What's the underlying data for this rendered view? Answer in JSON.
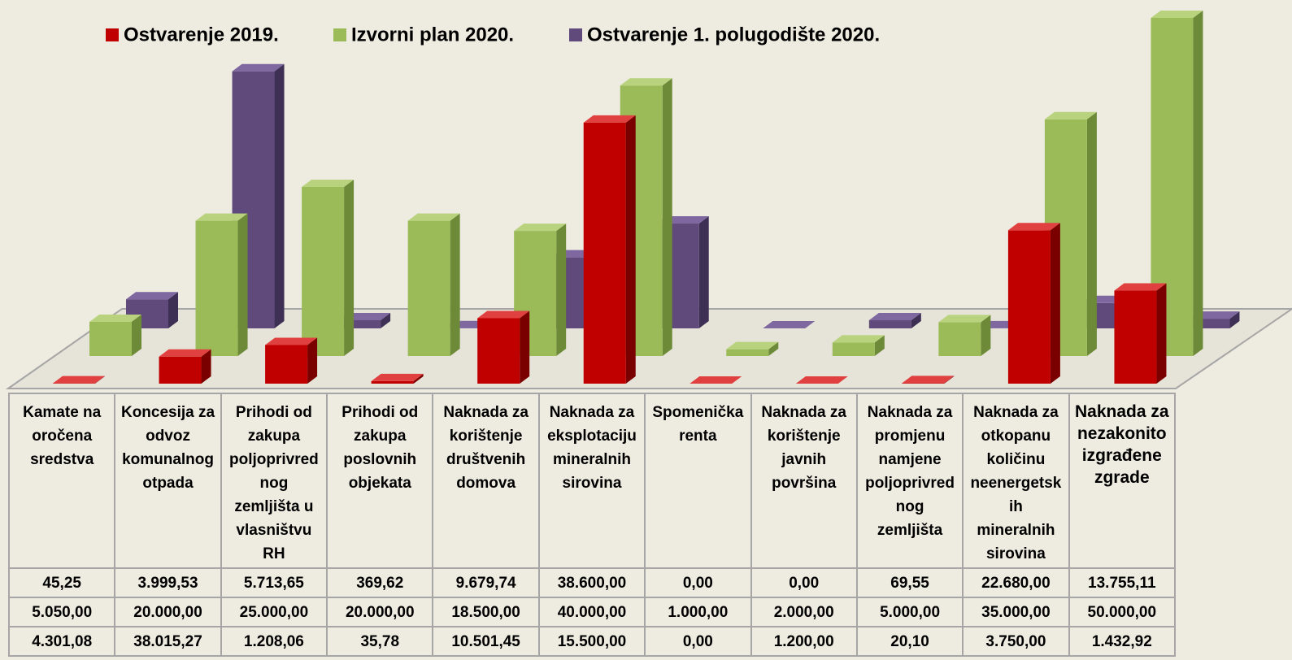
{
  "chart_data": {
    "type": "bar3d",
    "categories": [
      "Kamate na oročena sredstva",
      "Koncesija za odvoz komunalnog otpada",
      "Prihodi od zakupa poljoprivrednog zemljišta u vlasništvu RH",
      "Prihodi od zakupa poslovnih objekata",
      "Naknada za korištenje društvenih domova",
      "Naknada za eksplotaciju mineralnih sirovina",
      "Spomenička renta",
      "Naknada za korištenje javnih površina",
      "Naknada za promjenu namjene poljoprivrednog zemljišta",
      "Naknada za otkopanu količinu neenergetskih mineralnih sirovina",
      "Naknada za nezakonito izgrađene zgrade"
    ],
    "series": [
      {
        "name": "Ostvarenje 2019.",
        "color": "#c00000",
        "values": [
          45.25,
          3999.53,
          5713.65,
          369.62,
          9679.74,
          38600,
          0,
          0,
          69.55,
          22680,
          13755.11
        ],
        "value_labels": [
          "45,25",
          "3.999,53",
          "5.713,65",
          "369,62",
          "9.679,74",
          "38.600,00",
          "0,00",
          "0,00",
          "69,55",
          "22.680,00",
          "13.755,11"
        ]
      },
      {
        "name": "Izvorni plan 2020.",
        "color": "#9bbb59",
        "values": [
          5050,
          20000,
          25000,
          20000,
          18500,
          40000,
          1000,
          2000,
          5000,
          35000,
          50000
        ],
        "value_labels": [
          "5.050,00",
          "20.000,00",
          "25.000,00",
          "20.000,00",
          "18.500,00",
          "40.000,00",
          "1.000,00",
          "2.000,00",
          "5.000,00",
          "35.000,00",
          "50.000,00"
        ]
      },
      {
        "name": "Ostvarenje 1. polugodište 2020.",
        "color": "#604a7b",
        "values": [
          4301.08,
          38015.27,
          1208.06,
          35.78,
          10501.45,
          15500,
          0,
          1200,
          20.1,
          3750,
          1432.92
        ],
        "value_labels": [
          "4.301,08",
          "38.015,27",
          "1.208,06",
          "35,78",
          "10.501,45",
          "15.500,00",
          "0,00",
          "1.200,00",
          "20,10",
          "3.750,00",
          "1.432,92"
        ]
      }
    ]
  }
}
